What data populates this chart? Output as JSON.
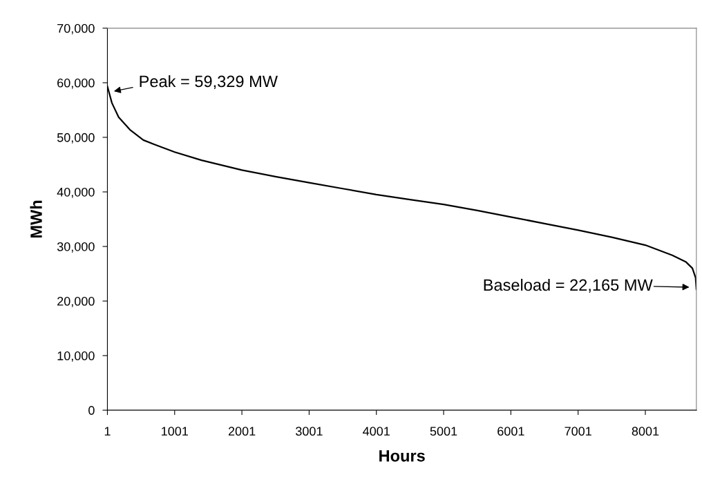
{
  "chart_data": {
    "type": "line",
    "xlabel": "Hours",
    "ylabel": "MWh",
    "series": [
      {
        "color": "#000000",
        "x": [
          1,
          68,
          168,
          335,
          535,
          700,
          1001,
          1401,
          2001,
          2501,
          3001,
          3501,
          4001,
          4501,
          5001,
          5501,
          6001,
          6501,
          7001,
          7501,
          8001,
          8401,
          8601,
          8701,
          8748,
          8760
        ],
        "values": [
          59329,
          56300,
          53700,
          51400,
          49500,
          48700,
          47300,
          45800,
          44000,
          42800,
          41700,
          40600,
          39500,
          38600,
          37700,
          36600,
          35400,
          34200,
          33000,
          31700,
          30250,
          28400,
          27200,
          26000,
          24300,
          22165
        ]
      }
    ],
    "xlim": [
      1,
      8760
    ],
    "xticks": [
      1,
      1001,
      2001,
      3001,
      4001,
      5001,
      6001,
      7001,
      8001
    ],
    "ylim": [
      0,
      70000
    ],
    "yticks": [
      0,
      {
        "value": 10000,
        "label": "10,000"
      },
      {
        "value": 20000,
        "label": "20,000"
      },
      {
        "value": 30000,
        "label": "30,000"
      },
      {
        "value": 40000,
        "label": "40,000"
      },
      {
        "value": 50000,
        "label": "50,000"
      },
      {
        "value": 60000,
        "label": "60,000"
      },
      {
        "value": 70000,
        "label": "70,000"
      }
    ],
    "annotations": [
      "Peak = 59,329 MW",
      "Baseload = 22,165 MW"
    ],
    "grid": false,
    "legend": false,
    "marker": "none",
    "line_style": "solid"
  }
}
